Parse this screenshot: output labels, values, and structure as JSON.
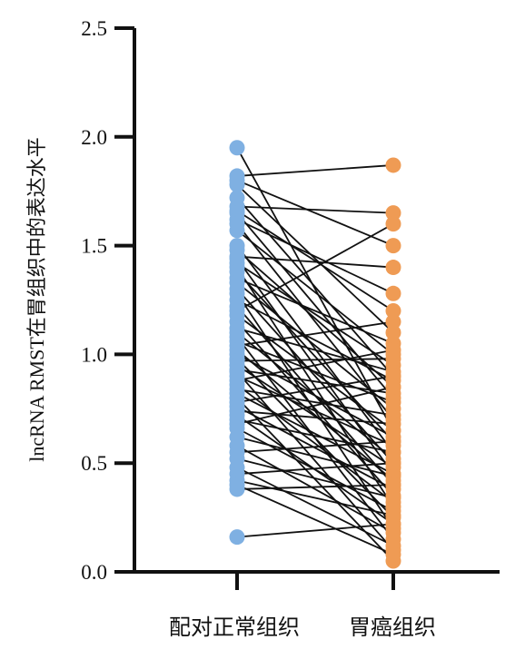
{
  "chart_data": {
    "type": "scatter",
    "subtype": "paired-dot",
    "title": "",
    "xlabel": "",
    "ylabel": "lncRNA RMST在胃组织中的表达水平",
    "ylim": [
      0,
      2.5
    ],
    "yticks": [
      "0.0",
      "0.5",
      "1.0",
      "1.5",
      "2.0",
      "2.5"
    ],
    "categories": [
      "配对正常组织",
      "胃癌组织"
    ],
    "colors": {
      "normal": "#7fb0e2",
      "tumor": "#ef9b54",
      "line": "#111111",
      "axis": "#111111"
    },
    "grid": false,
    "legend": "none",
    "pairs": [
      [
        1.95,
        0.65
      ],
      [
        1.82,
        1.87
      ],
      [
        1.8,
        1.5
      ],
      [
        1.78,
        1.1
      ],
      [
        1.72,
        0.9
      ],
      [
        1.68,
        1.65
      ],
      [
        1.66,
        1.2
      ],
      [
        1.65,
        0.8
      ],
      [
        1.62,
        1.28
      ],
      [
        1.6,
        0.7
      ],
      [
        1.57,
        1.0
      ],
      [
        1.5,
        0.55
      ],
      [
        1.48,
        0.85
      ],
      [
        1.45,
        1.4
      ],
      [
        1.44,
        0.45
      ],
      [
        1.42,
        0.95
      ],
      [
        1.4,
        0.3
      ],
      [
        1.38,
        0.6
      ],
      [
        1.35,
        1.05
      ],
      [
        1.33,
        0.75
      ],
      [
        1.3,
        0.5
      ],
      [
        1.28,
        0.2
      ],
      [
        1.25,
        0.88
      ],
      [
        1.22,
        0.4
      ],
      [
        1.2,
        1.6
      ],
      [
        1.18,
        0.65
      ],
      [
        1.15,
        0.35
      ],
      [
        1.12,
        0.92
      ],
      [
        1.1,
        0.52
      ],
      [
        1.08,
        0.15
      ],
      [
        1.06,
        0.78
      ],
      [
        1.04,
        1.15
      ],
      [
        1.02,
        0.42
      ],
      [
        1.0,
        0.62
      ],
      [
        0.98,
        0.25
      ],
      [
        0.97,
        0.98
      ],
      [
        0.95,
        0.48
      ],
      [
        0.93,
        0.82
      ],
      [
        0.92,
        0.1
      ],
      [
        0.9,
        0.58
      ],
      [
        0.88,
        1.02
      ],
      [
        0.86,
        0.32
      ],
      [
        0.84,
        0.72
      ],
      [
        0.82,
        0.45
      ],
      [
        0.8,
        0.05
      ],
      [
        0.78,
        0.9
      ],
      [
        0.76,
        0.38
      ],
      [
        0.74,
        0.68
      ],
      [
        0.72,
        0.22
      ],
      [
        0.7,
        0.55
      ],
      [
        0.68,
        0.85
      ],
      [
        0.66,
        0.28
      ],
      [
        0.62,
        0.44
      ],
      [
        0.58,
        0.18
      ],
      [
        0.55,
        0.6
      ],
      [
        0.52,
        0.34
      ],
      [
        0.48,
        0.12
      ],
      [
        0.45,
        0.5
      ],
      [
        0.42,
        0.26
      ],
      [
        0.4,
        0.08
      ],
      [
        0.38,
        0.4
      ],
      [
        0.16,
        0.22
      ]
    ]
  }
}
